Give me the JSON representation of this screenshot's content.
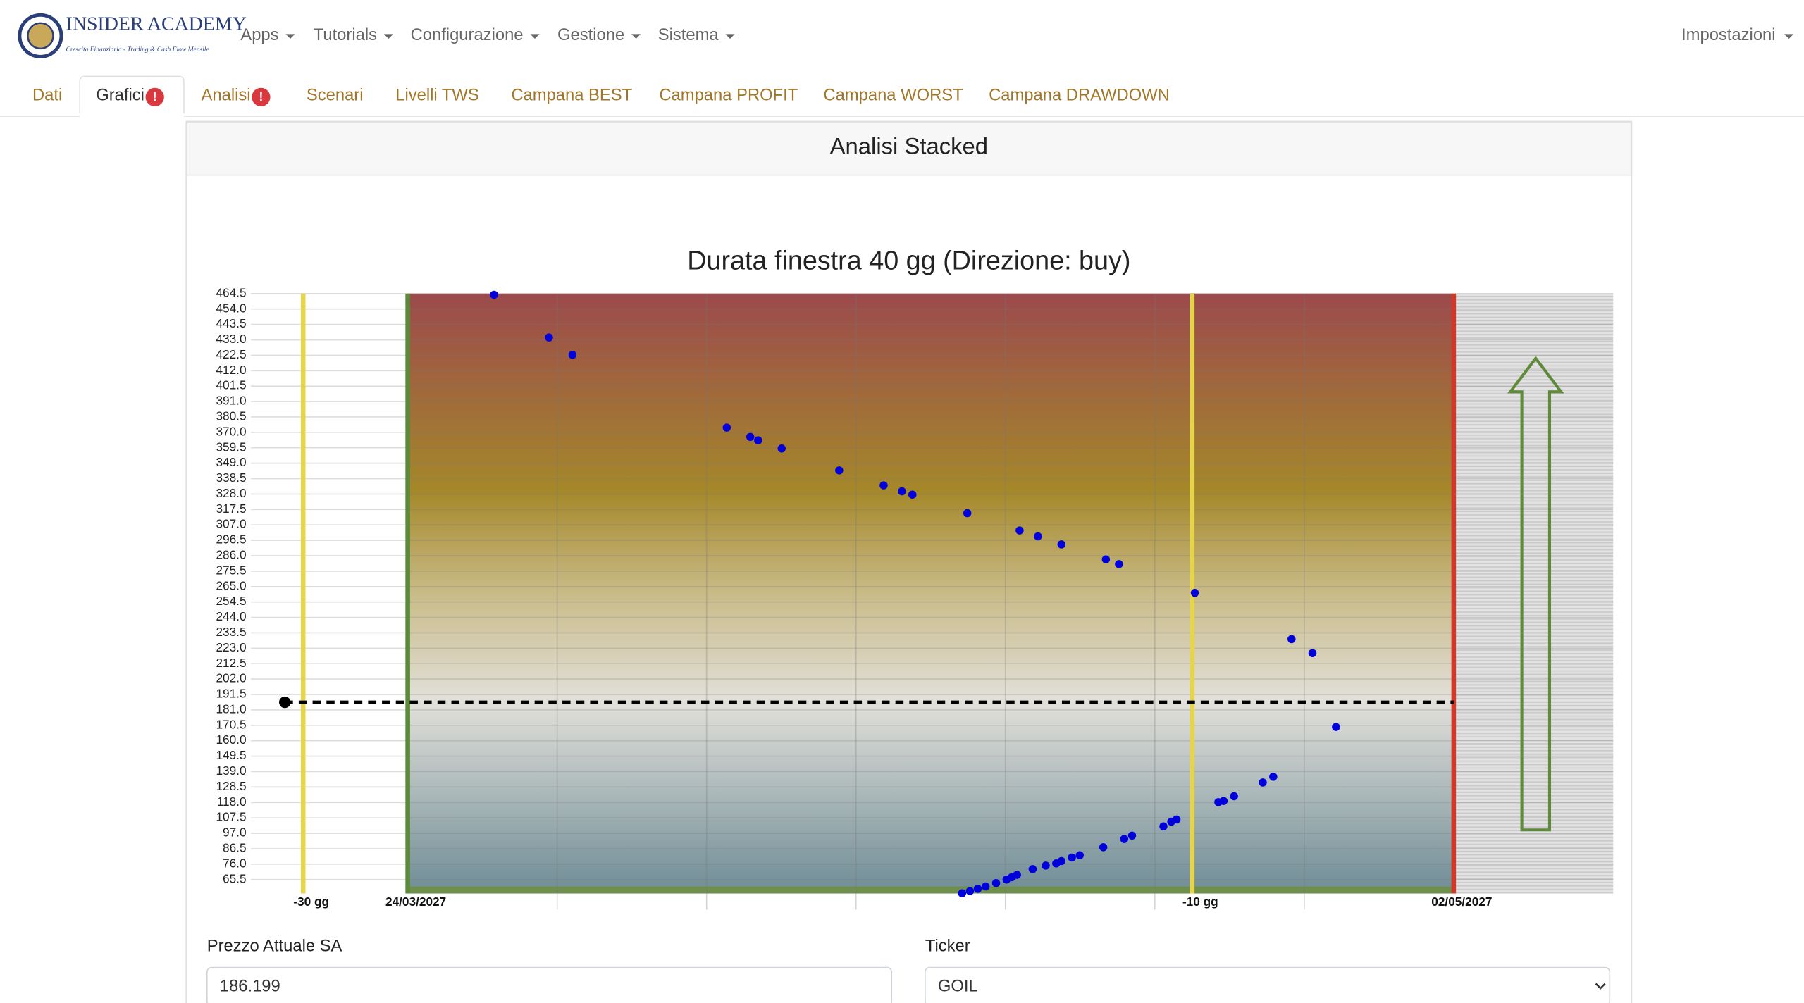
{
  "nav": {
    "brand": "INSIDER ACADEMY",
    "tagline": "Crescita Finanziaria - Trading & Cash Flow Mensile",
    "items": [
      "Apps",
      "Tutorials",
      "Configurazione",
      "Gestione",
      "Sistema"
    ],
    "right": "Impostazioni"
  },
  "tabs": [
    {
      "label": "Dati"
    },
    {
      "label": "Grafici",
      "badge": "!"
    },
    {
      "label": "Analisi",
      "badge": "!"
    },
    {
      "label": "Scenari"
    },
    {
      "label": "Livelli TWS"
    },
    {
      "label": "Campana BEST"
    },
    {
      "label": "Campana PROFIT"
    },
    {
      "label": "Campana WORST"
    },
    {
      "label": "Campana DRAWDOWN"
    }
  ],
  "card": {
    "title": "Analisi Stacked"
  },
  "chart_data": {
    "type": "scatter",
    "title": "Durata finestra 40 gg (Direzione: buy)",
    "series": [
      {
        "color": "#0000dd",
        "x": [
          3.3,
          5.4,
          6.3,
          12.2,
          13.1,
          13.4,
          14.3,
          16.5,
          18.2,
          18.9,
          19.3,
          21.4,
          23.4,
          24.1,
          25.0,
          26.7,
          27.2,
          30.1,
          33.8,
          34.6,
          35.5,
          33.1,
          32.7,
          31.6,
          31.2,
          31.0,
          29.4,
          29.2,
          28.9,
          27.7,
          27.4,
          26.6,
          25.7,
          25.4,
          25.0,
          24.8,
          24.4,
          23.9,
          23.3,
          23.1,
          22.9,
          22.5,
          22.1,
          21.8,
          21.5,
          21.2
        ],
        "values": [
          463.7,
          434.6,
          422.8,
          373.2,
          366.9,
          364.6,
          359.0,
          344.1,
          333.9,
          329.9,
          327.6,
          315.0,
          303.2,
          299.2,
          293.7,
          283.5,
          280.3,
          260.7,
          229.2,
          219.7,
          169.4,
          135.5,
          131.6,
          122.2,
          119.0,
          118.2,
          106.4,
          104.9,
          101.7,
          95.4,
          93.1,
          87.5,
          82.0,
          80.5,
          78.1,
          76.5,
          75.0,
          72.6,
          68.7,
          67.1,
          65.5,
          63.1,
          60.8,
          59.2,
          57.6,
          56.1
        ]
      }
    ],
    "reference_line": 186.199,
    "reference_x": -4.7,
    "xlim": [
      -7.5,
      46.1
    ],
    "ylim": [
      56,
      464.5
    ],
    "xticks": [
      {
        "value": -4,
        "label": "-30 gg"
      },
      {
        "value": 0,
        "label": "24/03/2027"
      },
      {
        "value": 30,
        "label": "-10 gg"
      },
      {
        "value": 40,
        "label": "02/05/2027"
      }
    ],
    "xtick_colors": [
      "#e6d44a",
      "#5b8a3a",
      "#e6d44a",
      "#d0382a"
    ],
    "yticks": [
      65.5,
      {
        "value": 76,
        "label": "76.0"
      },
      86.5,
      {
        "value": 97,
        "label": "97.0"
      },
      107.5,
      {
        "value": 118,
        "label": "118.0"
      },
      128.5,
      {
        "value": 139,
        "label": "139.0"
      },
      149.5,
      {
        "value": 160,
        "label": "160.0"
      },
      170.5,
      {
        "value": 181,
        "label": "181.0"
      },
      191.5,
      {
        "value": 202,
        "label": "202.0"
      },
      212.5,
      {
        "value": 223,
        "label": "223.0"
      },
      233.5,
      {
        "value": 244,
        "label": "244.0"
      },
      254.5,
      {
        "value": 265,
        "label": "265.0"
      },
      275.5,
      {
        "value": 286,
        "label": "286.0"
      },
      296.5,
      {
        "value": 307,
        "label": "307.0"
      },
      317.5,
      {
        "value": 328,
        "label": "328.0"
      },
      338.5,
      {
        "value": 349,
        "label": "349.0"
      },
      359.5,
      {
        "value": 370,
        "label": "370.0"
      },
      380.5,
      {
        "value": 391,
        "label": "391.0"
      },
      401.5,
      {
        "value": 412,
        "label": "412.0"
      },
      422.5,
      {
        "value": 433,
        "label": "433.0"
      },
      443.5,
      {
        "value": 454,
        "label": "454.0"
      },
      464.5
    ],
    "grid": true
  },
  "form": {
    "fields": [
      {
        "label": "Prezzo Attuale SA",
        "value": "186.199"
      },
      {
        "label": "Ticker",
        "value": "GOIL"
      }
    ]
  }
}
